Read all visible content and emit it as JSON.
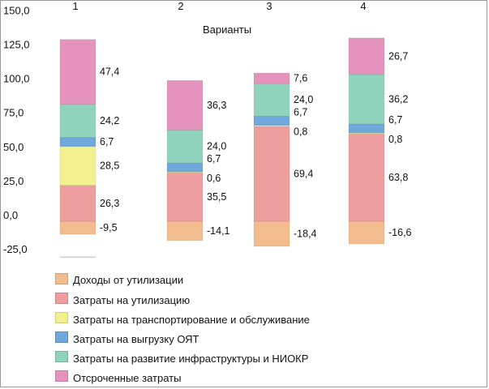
{
  "chart_data": {
    "type": "bar",
    "stacked": true,
    "title": "Варианты",
    "categories": [
      "1",
      "2",
      "3",
      "4"
    ],
    "ylim": [
      -25,
      150
    ],
    "yticks": [
      "-25,0",
      "0,0",
      "25,0",
      "50,0",
      "75,0",
      "100,0",
      "125,0",
      "150,0"
    ],
    "ytick_values": [
      -25,
      0,
      25,
      50,
      75,
      100,
      125,
      150
    ],
    "grid": false,
    "legend_position": "bottom",
    "series": [
      {
        "name": "Доходы от утилизации",
        "color": "#f2bc8e",
        "values": [
          -9.5,
          -14.1,
          -18.4,
          -16.6
        ],
        "labels": [
          "-9,5",
          "-14,1",
          "-18,4",
          "-16,6"
        ]
      },
      {
        "name": "Затраты на утилизацию",
        "color": "#ee9e9e",
        "values": [
          26.3,
          35.5,
          69.4,
          63.8
        ],
        "labels": [
          "26,3",
          "35,5",
          "69,4",
          "63,8"
        ]
      },
      {
        "name": "Затраты на транспортирование и обслуживание",
        "color": "#f2f08e",
        "values": [
          28.5,
          0.6,
          0.8,
          0.8
        ],
        "labels": [
          "28,5",
          "0,6",
          "0,8",
          "0,8"
        ]
      },
      {
        "name": "Затраты на выгрузку ОЯТ",
        "color": "#6fa8dc",
        "values": [
          6.7,
          6.7,
          6.7,
          6.7
        ],
        "labels": [
          "6,7",
          "6,7",
          "6,7",
          "6,7"
        ]
      },
      {
        "name": "Затраты на развитие инфраструктуры и НИОКР",
        "color": "#8fd3bd",
        "values": [
          24.2,
          24.0,
          24.0,
          36.2
        ],
        "labels": [
          "24,2",
          "24,0",
          "24,0",
          "36,2"
        ]
      },
      {
        "name": "Отсроченные затраты",
        "color": "#e494bc",
        "values": [
          47.4,
          36.3,
          7.6,
          26.7
        ],
        "labels": [
          "47,4",
          "36,3",
          "7,6",
          "26,7"
        ]
      }
    ]
  }
}
